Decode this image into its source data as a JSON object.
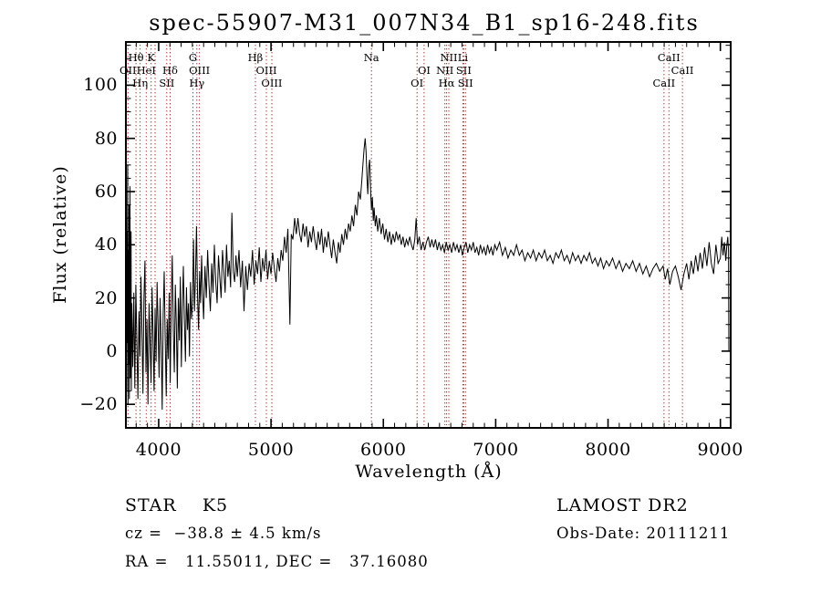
{
  "title": "spec-55907-M31_007N34_B1_sp16-248.fits",
  "footer": {
    "class_label": "STAR    K5",
    "cz": "cz =  −38.8 ± 4.5 km/s",
    "radec": "RA =   11.55011, DEC =   37.16080",
    "survey": "LAMOST DR2",
    "obs_date": "Obs-Date: 20111211"
  },
  "chart_data": {
    "type": "line",
    "title": "spec-55907-M31_007N34_B1_sp16-248.fits",
    "xlabel": "Wavelength (Å)",
    "ylabel": "Flux (relative)",
    "xlim": [
      3700,
      9100
    ],
    "ylim": [
      -29.2,
      116.6
    ],
    "x_ticks": [
      4000,
      5000,
      6000,
      7000,
      8000,
      9000
    ],
    "y_ticks": [
      -20,
      0,
      20,
      40,
      60,
      80,
      100
    ],
    "x_minor_step": 100,
    "y_minor_step": 5,
    "grid": false,
    "legend_position": "none",
    "line_color": "#000000",
    "spectral_line_color": "#a03830",
    "spectral_lines": [
      {
        "label": "Hθ",
        "wl": 3798,
        "row": 1
      },
      {
        "label": "K",
        "wl": 3933,
        "row": 1
      },
      {
        "label": "G",
        "wl": 4305,
        "row": 1
      },
      {
        "label": "Hβ",
        "wl": 4861,
        "row": 1
      },
      {
        "label": "Na",
        "wl": 5894,
        "row": 1
      },
      {
        "label": "NII",
        "wl": 6583,
        "row": 1
      },
      {
        "label": "Li",
        "wl": 6708,
        "row": 1
      },
      {
        "label": "CaII",
        "wl": 8542,
        "row": 1
      },
      {
        "label": "OII",
        "wl": 3727,
        "row": 2
      },
      {
        "label": "HeI",
        "wl": 3889,
        "row": 2
      },
      {
        "label": "Hδ",
        "wl": 4102,
        "row": 2
      },
      {
        "label": "OIII",
        "wl": 4363,
        "row": 2
      },
      {
        "label": "OIII",
        "wl": 4959,
        "row": 2
      },
      {
        "label": "OI",
        "wl": 6363,
        "row": 2
      },
      {
        "label": "NII",
        "wl": 6548,
        "row": 2
      },
      {
        "label": "SII",
        "wl": 6716,
        "row": 2
      },
      {
        "label": "CaII",
        "wl": 8662,
        "row": 2
      },
      {
        "label": "Hη",
        "wl": 3835,
        "row": 3
      },
      {
        "label": "SII",
        "wl": 4072,
        "row": 3
      },
      {
        "label": "Hγ",
        "wl": 4340,
        "row": 3
      },
      {
        "label": "OIII",
        "wl": 5007,
        "row": 3
      },
      {
        "label": "OI",
        "wl": 6300,
        "row": 3
      },
      {
        "label": "Hα",
        "wl": 6563,
        "row": 3
      },
      {
        "label": "SII",
        "wl": 6731,
        "row": 3
      },
      {
        "label": "CaII",
        "wl": 8498,
        "row": 3
      },
      {
        "label": "",
        "wl": 3968,
        "row": 0
      }
    ],
    "points": [
      [
        3700,
        25
      ],
      [
        3703,
        98
      ],
      [
        3706,
        -8
      ],
      [
        3709,
        60
      ],
      [
        3712,
        92
      ],
      [
        3715,
        -15
      ],
      [
        3718,
        45
      ],
      [
        3721,
        3
      ],
      [
        3724,
        70
      ],
      [
        3727,
        -20
      ],
      [
        3730,
        38
      ],
      [
        3733,
        -5
      ],
      [
        3736,
        55
      ],
      [
        3739,
        -18
      ],
      [
        3742,
        30
      ],
      [
        3745,
        62
      ],
      [
        3748,
        -10
      ],
      [
        3751,
        20
      ],
      [
        3754,
        45
      ],
      [
        3757,
        -15
      ],
      [
        3761,
        18
      ],
      [
        3770,
        -6
      ],
      [
        3779,
        22
      ],
      [
        3788,
        -14
      ],
      [
        3797,
        25
      ],
      [
        3806,
        2
      ],
      [
        3815,
        -18
      ],
      [
        3824,
        15
      ],
      [
        3833,
        -2
      ],
      [
        3842,
        28
      ],
      [
        3851,
        8
      ],
      [
        3860,
        -16
      ],
      [
        3869,
        20
      ],
      [
        3878,
        34
      ],
      [
        3887,
        -8
      ],
      [
        3896,
        12
      ],
      [
        3905,
        -20
      ],
      [
        3914,
        18
      ],
      [
        3923,
        4
      ],
      [
        3932,
        -12
      ],
      [
        3941,
        24
      ],
      [
        3950,
        6
      ],
      [
        3959,
        -15
      ],
      [
        3968,
        16
      ],
      [
        3977,
        -4
      ],
      [
        3986,
        26
      ],
      [
        3995,
        10
      ],
      [
        4004,
        -10
      ],
      [
        4013,
        20
      ],
      [
        4022,
        2
      ],
      [
        4031,
        -22
      ],
      [
        4040,
        14
      ],
      [
        4049,
        30
      ],
      [
        4058,
        5
      ],
      [
        4067,
        -17
      ],
      [
        4076,
        12
      ],
      [
        4085,
        -3
      ],
      [
        4094,
        22
      ],
      [
        4103,
        -12
      ],
      [
        4112,
        18
      ],
      [
        4121,
        36
      ],
      [
        4130,
        8
      ],
      [
        4139,
        -8
      ],
      [
        4148,
        25
      ],
      [
        4157,
        10
      ],
      [
        4166,
        -14
      ],
      [
        4175,
        20
      ],
      [
        4184,
        4
      ],
      [
        4193,
        28
      ],
      [
        4202,
        -6
      ],
      [
        4211,
        16
      ],
      [
        4220,
        32
      ],
      [
        4229,
        12
      ],
      [
        4238,
        -4
      ],
      [
        4247,
        24
      ],
      [
        4256,
        8
      ],
      [
        4265,
        18
      ],
      [
        4274,
        -2
      ],
      [
        4283,
        26
      ],
      [
        4292,
        12
      ],
      [
        4301,
        18
      ],
      [
        4310,
        42
      ],
      [
        4319,
        15
      ],
      [
        4328,
        28
      ],
      [
        4337,
        47
      ],
      [
        4346,
        20
      ],
      [
        4355,
        8
      ],
      [
        4364,
        30
      ],
      [
        4373,
        18
      ],
      [
        4382,
        36
      ],
      [
        4391,
        22
      ],
      [
        4400,
        12
      ],
      [
        4412,
        32
      ],
      [
        4424,
        20
      ],
      [
        4436,
        38
      ],
      [
        4448,
        25
      ],
      [
        4460,
        15
      ],
      [
        4472,
        33
      ],
      [
        4484,
        22
      ],
      [
        4496,
        40
      ],
      [
        4508,
        26
      ],
      [
        4520,
        18
      ],
      [
        4532,
        36
      ],
      [
        4544,
        28
      ],
      [
        4556,
        20
      ],
      [
        4568,
        38
      ],
      [
        4580,
        30
      ],
      [
        4592,
        22
      ],
      [
        4604,
        40
      ],
      [
        4616,
        28
      ],
      [
        4628,
        34
      ],
      [
        4640,
        24
      ],
      [
        4652,
        52
      ],
      [
        4664,
        30
      ],
      [
        4676,
        26
      ],
      [
        4688,
        36
      ],
      [
        4700,
        28
      ],
      [
        4715,
        38
      ],
      [
        4730,
        24
      ],
      [
        4745,
        34
      ],
      [
        4760,
        15
      ],
      [
        4775,
        32
      ],
      [
        4790,
        23
      ],
      [
        4805,
        33
      ],
      [
        4820,
        28
      ],
      [
        4835,
        38
      ],
      [
        4850,
        25
      ],
      [
        4865,
        34
      ],
      [
        4880,
        29
      ],
      [
        4895,
        39
      ],
      [
        4910,
        26
      ],
      [
        4925,
        35
      ],
      [
        4940,
        30
      ],
      [
        4955,
        38
      ],
      [
        4970,
        27
      ],
      [
        4985,
        34
      ],
      [
        5000,
        29
      ],
      [
        5015,
        37
      ],
      [
        5030,
        31
      ],
      [
        5045,
        26
      ],
      [
        5060,
        35
      ],
      [
        5075,
        30
      ],
      [
        5090,
        38
      ],
      [
        5105,
        34
      ],
      [
        5120,
        43
      ],
      [
        5135,
        37
      ],
      [
        5150,
        46
      ],
      [
        5168,
        10
      ],
      [
        5180,
        44
      ],
      [
        5195,
        42
      ],
      [
        5210,
        50
      ],
      [
        5225,
        44
      ],
      [
        5240,
        50
      ],
      [
        5255,
        44
      ],
      [
        5270,
        41
      ],
      [
        5285,
        48
      ],
      [
        5300,
        43
      ],
      [
        5315,
        47
      ],
      [
        5330,
        39
      ],
      [
        5345,
        45
      ],
      [
        5360,
        41
      ],
      [
        5375,
        47
      ],
      [
        5390,
        42
      ],
      [
        5405,
        38
      ],
      [
        5420,
        45
      ],
      [
        5435,
        40
      ],
      [
        5450,
        46
      ],
      [
        5465,
        37
      ],
      [
        5480,
        43
      ],
      [
        5495,
        39
      ],
      [
        5510,
        45
      ],
      [
        5525,
        40
      ],
      [
        5540,
        35
      ],
      [
        5555,
        42
      ],
      [
        5570,
        37
      ],
      [
        5585,
        33
      ],
      [
        5600,
        41
      ],
      [
        5615,
        37
      ],
      [
        5630,
        44
      ],
      [
        5645,
        40
      ],
      [
        5660,
        46
      ],
      [
        5675,
        42
      ],
      [
        5690,
        48
      ],
      [
        5705,
        45
      ],
      [
        5720,
        51
      ],
      [
        5735,
        47
      ],
      [
        5750,
        55
      ],
      [
        5765,
        51
      ],
      [
        5780,
        60
      ],
      [
        5795,
        57
      ],
      [
        5808,
        64
      ],
      [
        5818,
        70
      ],
      [
        5828,
        76
      ],
      [
        5838,
        80
      ],
      [
        5846,
        75
      ],
      [
        5854,
        65
      ],
      [
        5862,
        59
      ],
      [
        5870,
        69
      ],
      [
        5878,
        72
      ],
      [
        5886,
        61
      ],
      [
        5894,
        53
      ],
      [
        5902,
        58
      ],
      [
        5910,
        49
      ],
      [
        5918,
        54
      ],
      [
        5928,
        47
      ],
      [
        5938,
        51
      ],
      [
        5950,
        45
      ],
      [
        5965,
        50
      ],
      [
        5980,
        44
      ],
      [
        5995,
        48
      ],
      [
        6010,
        42
      ],
      [
        6025,
        46
      ],
      [
        6040,
        41
      ],
      [
        6055,
        45
      ],
      [
        6070,
        40
      ],
      [
        6085,
        44
      ],
      [
        6100,
        41
      ],
      [
        6115,
        45
      ],
      [
        6130,
        42
      ],
      [
        6145,
        44
      ],
      [
        6160,
        40
      ],
      [
        6175,
        43
      ],
      [
        6190,
        39
      ],
      [
        6205,
        42
      ],
      [
        6220,
        40
      ],
      [
        6235,
        43
      ],
      [
        6250,
        40
      ],
      [
        6265,
        38
      ],
      [
        6280,
        42
      ],
      [
        6292,
        50
      ],
      [
        6304,
        40
      ],
      [
        6320,
        43
      ],
      [
        6336,
        38
      ],
      [
        6352,
        41
      ],
      [
        6368,
        38
      ],
      [
        6384,
        41
      ],
      [
        6400,
        43
      ],
      [
        6416,
        39
      ],
      [
        6432,
        42
      ],
      [
        6448,
        39
      ],
      [
        6464,
        42
      ],
      [
        6480,
        38
      ],
      [
        6496,
        41
      ],
      [
        6512,
        38
      ],
      [
        6528,
        40
      ],
      [
        6544,
        37
      ],
      [
        6560,
        41
      ],
      [
        6576,
        38
      ],
      [
        6592,
        40
      ],
      [
        6608,
        37
      ],
      [
        6624,
        41
      ],
      [
        6640,
        38
      ],
      [
        6656,
        40
      ],
      [
        6672,
        37
      ],
      [
        6688,
        40
      ],
      [
        6704,
        36
      ],
      [
        6720,
        39
      ],
      [
        6736,
        41
      ],
      [
        6752,
        37
      ],
      [
        6768,
        40
      ],
      [
        6784,
        38
      ],
      [
        6800,
        41
      ],
      [
        6816,
        37
      ],
      [
        6832,
        39
      ],
      [
        6848,
        36
      ],
      [
        6864,
        40
      ],
      [
        6880,
        37
      ],
      [
        6896,
        39
      ],
      [
        6912,
        36
      ],
      [
        6928,
        40
      ],
      [
        6944,
        37
      ],
      [
        6960,
        39
      ],
      [
        6976,
        36
      ],
      [
        6992,
        40
      ],
      [
        7010,
        38
      ],
      [
        7035,
        41
      ],
      [
        7060,
        36
      ],
      [
        7085,
        39
      ],
      [
        7110,
        35
      ],
      [
        7135,
        38
      ],
      [
        7160,
        36
      ],
      [
        7185,
        40
      ],
      [
        7210,
        36
      ],
      [
        7235,
        38
      ],
      [
        7260,
        34
      ],
      [
        7285,
        37
      ],
      [
        7310,
        35
      ],
      [
        7335,
        38
      ],
      [
        7360,
        34
      ],
      [
        7385,
        37
      ],
      [
        7410,
        35
      ],
      [
        7435,
        38
      ],
      [
        7460,
        34
      ],
      [
        7485,
        36
      ],
      [
        7510,
        33
      ],
      [
        7535,
        37
      ],
      [
        7560,
        35
      ],
      [
        7585,
        38
      ],
      [
        7610,
        34
      ],
      [
        7635,
        36
      ],
      [
        7660,
        33
      ],
      [
        7685,
        37
      ],
      [
        7710,
        34
      ],
      [
        7735,
        36
      ],
      [
        7760,
        33
      ],
      [
        7785,
        36
      ],
      [
        7810,
        34
      ],
      [
        7835,
        37
      ],
      [
        7860,
        33
      ],
      [
        7885,
        35
      ],
      [
        7910,
        32
      ],
      [
        7935,
        35
      ],
      [
        7960,
        31
      ],
      [
        7985,
        34
      ],
      [
        8010,
        32
      ],
      [
        8040,
        35
      ],
      [
        8070,
        31
      ],
      [
        8100,
        34
      ],
      [
        8130,
        30
      ],
      [
        8160,
        33
      ],
      [
        8190,
        31
      ],
      [
        8220,
        34
      ],
      [
        8250,
        30
      ],
      [
        8280,
        33
      ],
      [
        8310,
        29
      ],
      [
        8340,
        32
      ],
      [
        8370,
        28
      ],
      [
        8400,
        31
      ],
      [
        8430,
        33
      ],
      [
        8460,
        30
      ],
      [
        8490,
        32
      ],
      [
        8510,
        27
      ],
      [
        8530,
        31
      ],
      [
        8550,
        25
      ],
      [
        8575,
        30
      ],
      [
        8600,
        32
      ],
      [
        8625,
        28
      ],
      [
        8650,
        23
      ],
      [
        8675,
        29
      ],
      [
        8700,
        33
      ],
      [
        8720,
        27
      ],
      [
        8740,
        34
      ],
      [
        8760,
        29
      ],
      [
        8780,
        36
      ],
      [
        8800,
        30
      ],
      [
        8820,
        37
      ],
      [
        8840,
        31
      ],
      [
        8860,
        39
      ],
      [
        8880,
        32
      ],
      [
        8900,
        41
      ],
      [
        8920,
        33
      ],
      [
        8940,
        29
      ],
      [
        8960,
        40
      ],
      [
        8980,
        33
      ],
      [
        9000,
        35
      ],
      [
        9012,
        43
      ],
      [
        9024,
        36
      ],
      [
        9036,
        41
      ],
      [
        9048,
        34
      ],
      [
        9058,
        40
      ],
      [
        9066,
        43
      ],
      [
        9072,
        38
      ],
      [
        9076,
        0
      ]
    ]
  }
}
